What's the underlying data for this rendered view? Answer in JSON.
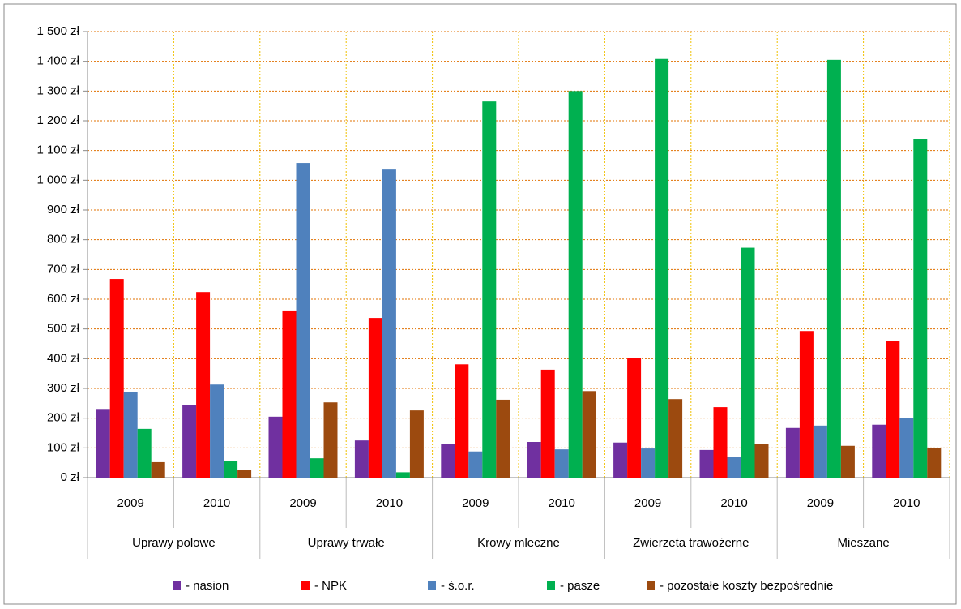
{
  "chart_data": {
    "type": "bar",
    "categories": [
      "2009",
      "2010",
      "2009",
      "2010",
      "2009",
      "2010",
      "2009",
      "2010",
      "2009",
      "2010"
    ],
    "groups": [
      "Uprawy polowe",
      "Uprawy trwałe",
      "Krowy mleczne",
      "Zwierzeta trawożerne",
      "Mieszane"
    ],
    "series": [
      {
        "name": "- nasion",
        "color": "#7030a0",
        "values": [
          231,
          243,
          205,
          125,
          112,
          120,
          118,
          93,
          167,
          178
        ]
      },
      {
        "name": "- NPK",
        "color": "#ff0000",
        "values": [
          668,
          624,
          562,
          537,
          381,
          363,
          403,
          237,
          493,
          460
        ]
      },
      {
        "name": "- ś.o.r.",
        "color": "#4f81bd",
        "values": [
          289,
          313,
          1058,
          1036,
          88,
          95,
          98,
          70,
          175,
          200
        ]
      },
      {
        "name": "- pasze",
        "color": "#00b050",
        "values": [
          164,
          57,
          65,
          18,
          1265,
          1300,
          1408,
          773,
          1405,
          1140
        ]
      },
      {
        "name": "- pozostałe koszty bezpośrednie",
        "color": "#9c4a0f",
        "values": [
          52,
          25,
          253,
          226,
          262,
          291,
          264,
          112,
          107,
          100
        ]
      }
    ],
    "ylim": [
      0,
      1500
    ],
    "yticks": [
      {
        "value": 0,
        "label": "0 zł"
      },
      {
        "value": 100,
        "label": "100 zł"
      },
      {
        "value": 200,
        "label": "200 zł"
      },
      {
        "value": 300,
        "label": "300 zł"
      },
      {
        "value": 400,
        "label": "400 zł"
      },
      {
        "value": 500,
        "label": "500 zł"
      },
      {
        "value": 600,
        "label": "600 zł"
      },
      {
        "value": 700,
        "label": "700 zł"
      },
      {
        "value": 800,
        "label": "800 zł"
      },
      {
        "value": 900,
        "label": "900 zł"
      },
      {
        "value": 1000,
        "label": "1 000 zł"
      },
      {
        "value": 1100,
        "label": "1 100 zł"
      },
      {
        "value": 1200,
        "label": "1 200 zł"
      },
      {
        "value": 1300,
        "label": "1 300 zł"
      },
      {
        "value": 1400,
        "label": "1 400 zł"
      },
      {
        "value": 1500,
        "label": "1 500 zł"
      }
    ],
    "grid": true,
    "legend": "bottom"
  }
}
